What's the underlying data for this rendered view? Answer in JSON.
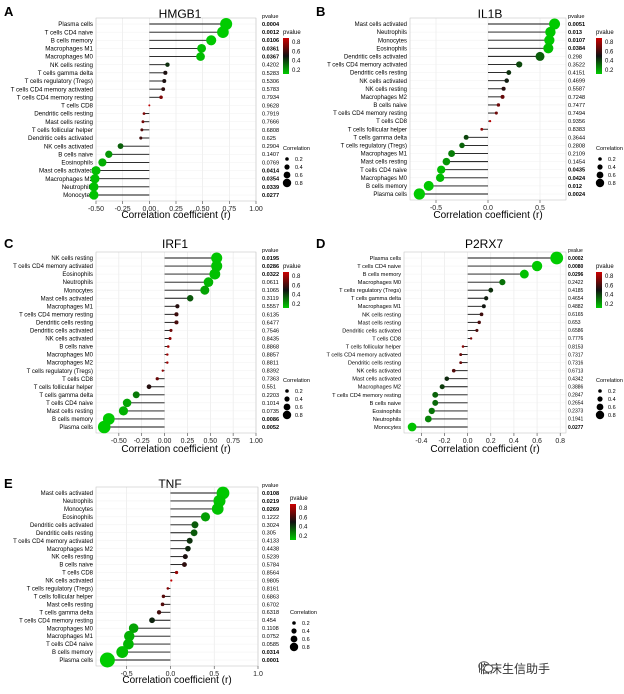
{
  "watermark": {
    "text": "临床生信助手",
    "icon": "wechat-icon"
  },
  "axis_title": "Correlation coefficient (r)",
  "pvalue_header": "pvalue",
  "legend": {
    "pvalue_title": "pvalue",
    "correlation_title": "Correlation",
    "pvalue_ticks": [
      "0.8",
      "0.6",
      "0.4",
      "0.2"
    ],
    "size_ticks": [
      "0.2",
      "0.4",
      "0.6",
      "0.8"
    ],
    "colors": {
      "low": "#00cc00",
      "high": "#cc0000",
      "mid": "#111111"
    }
  },
  "chart_data": [
    {
      "type": "lollipop",
      "panel": "A",
      "title": "HMGB1",
      "xlabel": "Correlation coefficient (r)",
      "xlim": [
        -0.5,
        1.0
      ],
      "xticks": [
        -0.5,
        -0.25,
        0.0,
        0.25,
        0.5,
        0.75,
        1.0
      ],
      "xtick_labels": [
        "-0.50",
        "-0.25",
        "0.00",
        "0.25",
        "0.50",
        "0.75",
        "1.00"
      ],
      "categories": [
        "Plasma cells",
        "T cells CD4 naive",
        "B cells memory",
        "Macrophages M1",
        "Macrophages M0",
        "NK cells resting",
        "T cells gamma delta",
        "T cells regulatory (Tregs)",
        "T cells CD4 memory activated",
        "T cells CD4 memory resting",
        "T cells CD8",
        "Dendritic cells resting",
        "Mast cells resting",
        "T cells follicular helper",
        "Dendritic cells activated",
        "NK cells activated",
        "B cells naive",
        "Eosinophils",
        "Mast cells activated",
        "Macrophages M2",
        "Neutrophils",
        "Monocytes"
      ],
      "r": [
        0.72,
        0.69,
        0.58,
        0.49,
        0.48,
        0.17,
        0.15,
        0.14,
        0.13,
        0.11,
        0.0,
        -0.05,
        -0.06,
        -0.07,
        -0.08,
        -0.27,
        -0.38,
        -0.44,
        -0.5,
        -0.51,
        -0.52,
        -0.52
      ],
      "pvalue": [
        "0.0004",
        "0.0012",
        "0.0106",
        "0.0361",
        "0.0367",
        "0.4202",
        "0.5283",
        "0.5306",
        "0.5783",
        "0.7934",
        "0.9628",
        "0.7919",
        "0.7666",
        "0.6808",
        "0.625",
        "0.2904",
        "0.1407",
        "0.0769",
        "0.0414",
        "0.0354",
        "0.0339",
        "0.0277"
      ]
    },
    {
      "type": "lollipop",
      "panel": "B",
      "title": "IL1B",
      "xlabel": "Correlation coefficient (r)",
      "xlim": [
        -0.75,
        0.75
      ],
      "xticks": [
        -0.5,
        0.0,
        0.5
      ],
      "xtick_labels": [
        "-0.5",
        "0.0",
        "0.5"
      ],
      "categories": [
        "Mast cells activated",
        "Neutrophils",
        "Monocytes",
        "Eosinophils",
        "Dendritic cells activated",
        "T cells CD4 memory activated",
        "Dendritic cells resting",
        "NK cells activated",
        "NK cells resting",
        "Macrophages M2",
        "B cells naive",
        "T cells CD4 memory resting",
        "T cells CD8",
        "T cells follicular helper",
        "T cells gamma delta",
        "T cells regulatory (Tregs)",
        "Macrophages M1",
        "Mast cells resting",
        "T cells CD4 naive",
        "Macrophages M0",
        "B cells memory",
        "Plasma cells"
      ],
      "r": [
        0.64,
        0.6,
        0.59,
        0.58,
        0.5,
        0.3,
        0.2,
        0.18,
        0.15,
        0.14,
        0.1,
        0.08,
        0.02,
        -0.06,
        -0.21,
        -0.25,
        -0.35,
        -0.4,
        -0.45,
        -0.46,
        -0.57,
        -0.66
      ],
      "pvalue": [
        "0.0051",
        "0.013",
        "0.0107",
        "0.0384",
        "0.298",
        "0.3522",
        "0.4151",
        "0.4699",
        "0.5587",
        "0.7248",
        "0.7477",
        "0.7494",
        "0.9356",
        "0.8383",
        "0.3644",
        "0.2808",
        "0.2109",
        "0.1454",
        "0.0435",
        "0.0424",
        "0.012",
        "0.0024"
      ]
    },
    {
      "type": "lollipop",
      "panel": "C",
      "title": "IRF1",
      "xlabel": "Correlation coefficient (r)",
      "xlim": [
        -0.75,
        1.0
      ],
      "xticks": [
        -0.5,
        -0.25,
        0.0,
        0.25,
        0.5,
        0.75,
        1.0
      ],
      "xtick_labels": [
        "-0.50",
        "-0.25",
        "0.00",
        "0.25",
        "0.50",
        "0.75",
        "1.00"
      ],
      "categories": [
        "NK cells resting",
        "T cells CD4 memory activated",
        "Eosinophils",
        "Neutrophils",
        "Monocytes",
        "Mast cells activated",
        "Macrophages M1",
        "T cells CD4 memory resting",
        "Dendritic cells resting",
        "Dendritic cells activated",
        "NK cells activated",
        "B cells naive",
        "Macrophages M0",
        "Macrophages M2",
        "T cells regulatory (Tregs)",
        "T cells CD8",
        "T cells follicular helper",
        "T cells gamma delta",
        "T cells CD4 naive",
        "Mast cells resting",
        "B cells memory",
        "Plasma cells"
      ],
      "r": [
        0.57,
        0.57,
        0.55,
        0.48,
        0.44,
        0.28,
        0.14,
        0.13,
        0.13,
        0.07,
        0.06,
        0.04,
        0.03,
        0.03,
        -0.02,
        -0.08,
        -0.17,
        -0.31,
        -0.41,
        -0.45,
        -0.61,
        -0.66
      ],
      "pvalue": [
        "0.0195",
        "0.0286",
        "0.0322",
        "0.0611",
        "0.1065",
        "0.3119",
        "0.5557",
        "0.6135",
        "0.6477",
        "0.7546",
        "0.8435",
        "0.8868",
        "0.8857",
        "0.8811",
        "0.8392",
        "0.7363",
        "0.551",
        "0.2203",
        "0.1014",
        "0.0735",
        "0.0086",
        "0.0052"
      ]
    },
    {
      "type": "lollipop",
      "panel": "D",
      "title": "P2RX7",
      "xlabel": "Correlation coefficient (r)",
      "xlim": [
        -0.55,
        0.85
      ],
      "xticks": [
        -0.4,
        -0.2,
        0.0,
        0.2,
        0.4,
        0.6,
        0.8
      ],
      "xtick_labels": [
        "-0.4",
        "-0.2",
        "0.0",
        "0.2",
        "0.4",
        "0.6",
        "0.8"
      ],
      "categories": [
        "Plasma cells",
        "T cells CD4 naive",
        "B cells memory",
        "Macrophages M0",
        "T cells regulatory (Tregs)",
        "T cells gamma delta",
        "Macrophages M1",
        "NK cells resting",
        "Mast cells resting",
        "Dendritic cells activated",
        "T cells CD8",
        "T cells follicular helper",
        "T cells CD4 memory activated",
        "Dendritic cells resting",
        "NK cells activated",
        "Mast cells activated",
        "Macrophages M2",
        "T cells CD4 memory resting",
        "B cells naive",
        "Eosinophils",
        "Neutrophils",
        "Monocytes"
      ],
      "r": [
        0.77,
        0.6,
        0.49,
        0.3,
        0.2,
        0.16,
        0.14,
        0.12,
        0.1,
        0.08,
        0.03,
        -0.04,
        -0.06,
        -0.06,
        -0.12,
        -0.18,
        -0.22,
        -0.28,
        -0.28,
        -0.31,
        -0.34,
        -0.48
      ],
      "pvalue": [
        "0.0002",
        "0.0080",
        "0.0296",
        "0.2422",
        "0.4185",
        "0.4654",
        "0.4882",
        "0.6165",
        "0.653",
        "0.6586",
        "0.7776",
        "0.8153",
        "0.7317",
        "0.7316",
        "0.6713",
        "0.4342",
        "0.3886",
        "0.2847",
        "0.2654",
        "0.2373",
        "0.1941",
        "0.0277"
      ]
    },
    {
      "type": "lollipop",
      "panel": "E",
      "title": "TNF",
      "xlabel": "Correlation coefficient (r)",
      "xlim": [
        -0.85,
        1.0
      ],
      "xticks": [
        -0.5,
        0.0,
        0.5,
        1.0
      ],
      "xtick_labels": [
        "-0.5",
        "0.0",
        "0.5",
        "1.0"
      ],
      "categories": [
        "Mast cells activated",
        "Neutrophils",
        "Monocytes",
        "Eosinophils",
        "Dendritic cells activated",
        "Dendritic cells resting",
        "T cells CD4 memory activated",
        "Macrophages M2",
        "NK cells resting",
        "B cells naive",
        "T cells CD8",
        "NK cells activated",
        "T cells regulatory (Tregs)",
        "T cells follicular helper",
        "Mast cells resting",
        "T cells gamma delta",
        "T cells CD4 memory resting",
        "Macrophages M0",
        "Macrophages M1",
        "T cells CD4 naive",
        "B cells memory",
        "Plasma cells"
      ],
      "r": [
        0.6,
        0.56,
        0.54,
        0.4,
        0.28,
        0.27,
        0.22,
        0.2,
        0.17,
        0.16,
        0.07,
        0.01,
        -0.03,
        -0.08,
        -0.09,
        -0.13,
        -0.21,
        -0.42,
        -0.47,
        -0.48,
        -0.55,
        -0.72
      ],
      "pvalue": [
        "0.0108",
        "0.0219",
        "0.0269",
        "0.1222",
        "0.3024",
        "0.305",
        "0.4133",
        "0.4438",
        "0.5239",
        "0.5784",
        "0.8564",
        "0.9805",
        "0.8161",
        "0.6863",
        "0.6702",
        "0.6318",
        "0.454",
        "0.1108",
        "0.0752",
        "0.0585",
        "0.0314",
        "0.0001"
      ]
    }
  ]
}
